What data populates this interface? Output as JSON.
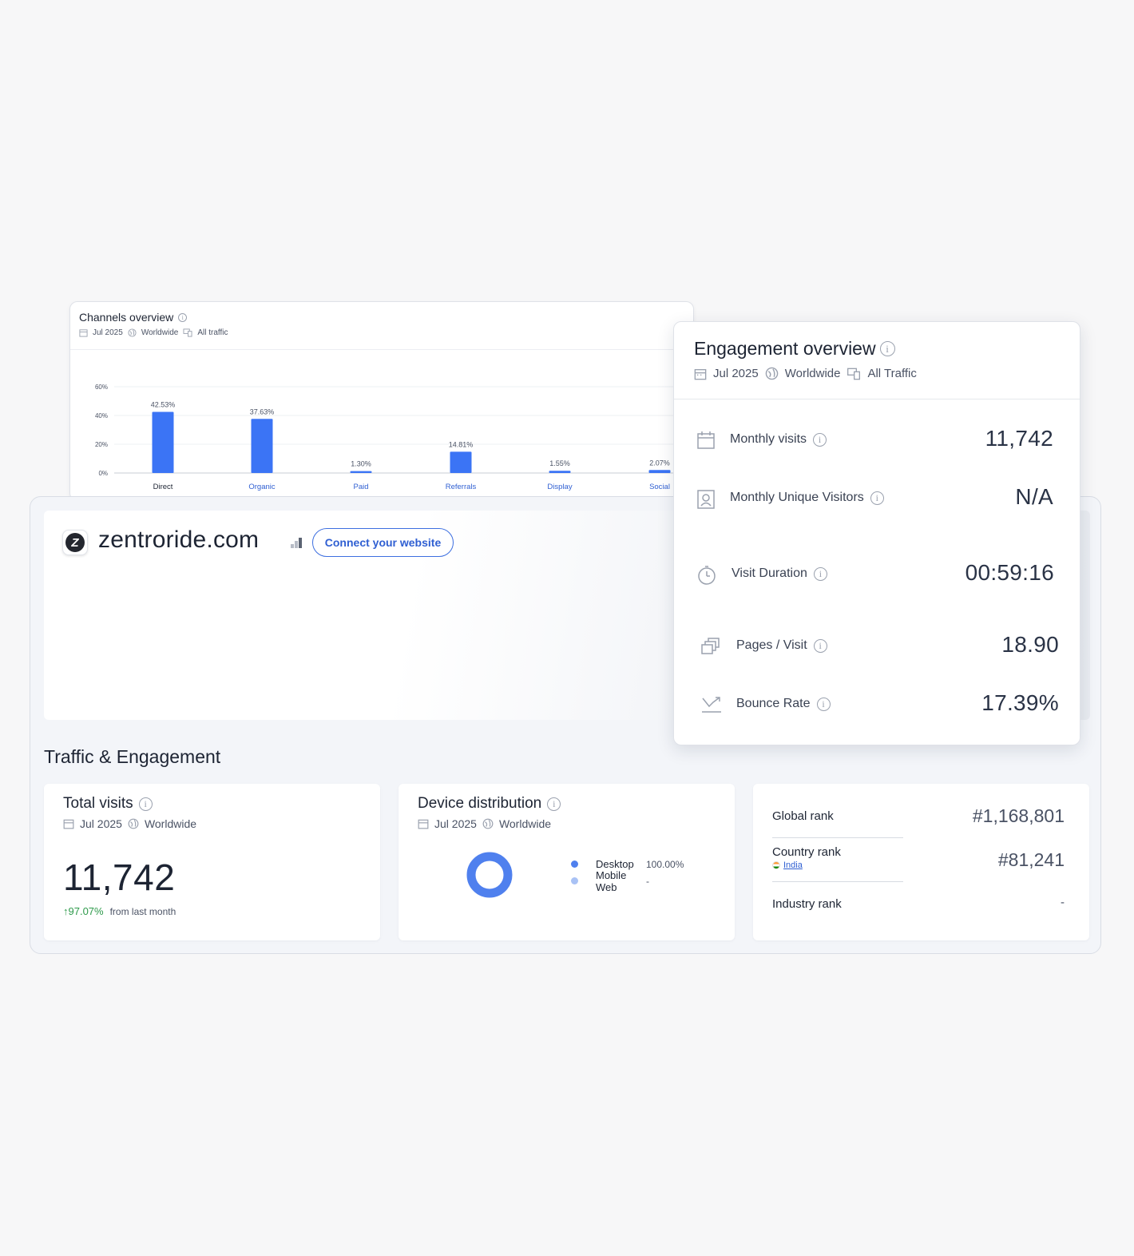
{
  "channels": {
    "title": "Channels overview",
    "date": "Jul 2025",
    "region": "Worldwide",
    "traffic": "All traffic"
  },
  "chart_data": {
    "type": "bar",
    "categories": [
      "Direct",
      "Organic",
      "Paid",
      "Referrals",
      "Display",
      "Social"
    ],
    "values": [
      42.53,
      37.63,
      1.3,
      14.81,
      1.55,
      2.07
    ],
    "labels": [
      "42.53%",
      "37.63%",
      "1.30%",
      "14.81%",
      "1.55%",
      "2.07%"
    ],
    "yticks": [
      "0%",
      "20%",
      "40%",
      "60%"
    ],
    "ylim": [
      0,
      60
    ],
    "grid": true,
    "bar_color": "#3b74f5",
    "active_category_color": "#1d2433",
    "category_color": "#2f5fd2"
  },
  "site": {
    "domain": "zentroride.com",
    "connect_label": "Connect your website",
    "logo_letter": "Z"
  },
  "section_title": "Traffic & Engagement",
  "total_visits": {
    "title": "Total visits",
    "date": "Jul 2025",
    "region": "Worldwide",
    "value": "11,742",
    "growth": "↑97.07%",
    "growth_label": "from last month"
  },
  "device": {
    "title": "Device distribution",
    "date": "Jul 2025",
    "region": "Worldwide",
    "items": [
      {
        "name": "Desktop",
        "value": "100.00%",
        "share": 1.0,
        "color": "#4f80ee"
      },
      {
        "name": "Mobile Web",
        "value": "-",
        "share": 0.0,
        "color": "#a9c2f5"
      }
    ]
  },
  "ranks": {
    "global_label": "Global rank",
    "global_value": "#1,168,801",
    "country_label": "Country rank",
    "country_name": "India",
    "country_value": "#81,241",
    "industry_label": "Industry rank",
    "industry_value": "-"
  },
  "engagement": {
    "title": "Engagement overview",
    "date": "Jul 2025",
    "region": "Worldwide",
    "traffic": "All Traffic",
    "metrics": [
      {
        "label": "Monthly visits",
        "value": "11,742",
        "icon": "calendar-icon"
      },
      {
        "label": "Monthly Unique Visitors",
        "value": "N/A",
        "icon": "id-card-icon"
      },
      {
        "label": "Visit Duration",
        "value": "00:59:16",
        "icon": "stopwatch-icon"
      },
      {
        "label": "Pages / Visit",
        "value": "18.90",
        "icon": "pages-icon"
      },
      {
        "label": "Bounce Rate",
        "value": "17.39%",
        "icon": "bounce-icon"
      }
    ]
  }
}
